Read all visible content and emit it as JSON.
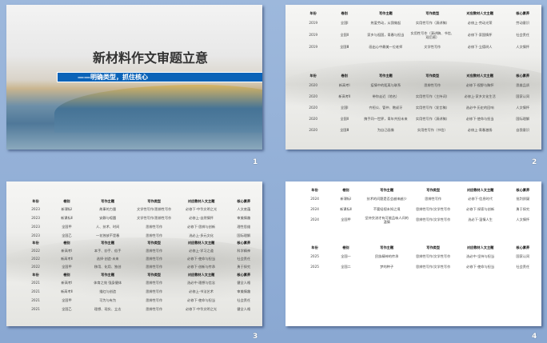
{
  "slides": [
    {
      "number": "1",
      "title": "新材料作文审题立意",
      "subtitle": "——明确类型，抓住核心"
    },
    {
      "number": "2",
      "tables": [
        {
          "headers": [
            "年份",
            "卷别",
            "写作主题",
            "写作类型",
            "对应教材人文主题",
            "核心素养"
          ],
          "rows": [
            [
              "2019",
              "全国Ⅰ",
              "热爱劳动，从我做起",
              "实用性写作（演讲稿）",
              "必修上·劳动光荣",
              "劳动意识"
            ],
            [
              "2019",
              "全国Ⅱ",
              "家乡与祖国，青春与担当",
              "实用性写作（演讲稿、书信、观后感）",
              "必修下·家国情怀",
              "社会责任"
            ],
            [
              "2019",
              "全国Ⅲ",
              "画出心中最美一位老师",
              "文学性写作",
              "必修下·立德树人",
              "人文情怀"
            ]
          ]
        },
        {
          "headers": [
            "年份",
            "卷别",
            "写作主题",
            "写作类型",
            "对应教材人文主题",
            "核心素养"
          ],
          "rows": [
            [
              "2020",
              "新高考Ⅰ",
              "疫情中的距离与联系",
              "思辨性写作",
              "必修下·视野与胸怀",
              "思维品质"
            ],
            [
              "2020",
              "新高考Ⅱ",
              "带你走近（地名）",
              "实用性写作（主持词）",
              "必修上·家乡文化生活",
              "国家认同"
            ],
            [
              "2020",
              "全国Ⅰ",
              "齐桓公、管仲、鲍叔牙",
              "实用性写作（发言稿）",
              "选必中·历史的回响",
              "人文情怀"
            ],
            [
              "2020",
              "全国Ⅱ",
              "携手同一世界，青年共担未来",
              "实用性写作（演讲稿）",
              "必修下·使命与担当",
              "国际理解"
            ],
            [
              "2020",
              "全国Ⅲ",
              "为自己画像",
              "实用性写作（书信）",
              "必修上·青春激扬",
              "自我意识"
            ]
          ]
        }
      ]
    },
    {
      "number": "3",
      "tables": [
        {
          "headers": [
            "年份",
            "卷别",
            "写作主题",
            "写作类型",
            "对应教材人文主题",
            "核心素养"
          ],
          "rows": [
            [
              "2023",
              "新课标Ⅰ",
              "故事的力量",
              "文学性写作/思辨性写作",
              "必修下·中华文明之光",
              "人文底蕴"
            ],
            [
              "2023",
              "新课标Ⅱ",
              "安静与喧嚣",
              "文学性写作/思辨性写作",
              "必修上·自然情怀",
              "审美情趣"
            ],
            [
              "2023",
              "全国甲",
              "人、技术、时间",
              "思辨性写作",
              "必修下·思辨与创新",
              "理性思维"
            ],
            [
              "2023",
              "全国乙",
              "一花独放不是春",
              "思辨性写作",
              "选必上·多元文化",
              "国际理解"
            ]
          ]
        },
        {
          "headers": [
            "年份",
            "卷别",
            "写作主题",
            "写作类型",
            "对应教材人文主题",
            "核心素养"
          ],
          "rows": [
            [
              "2022",
              "新高考Ⅰ",
              "本手、妙手、俗手",
              "思辨性写作",
              "必修上·学习之道",
              "科学精神"
            ],
            [
              "2022",
              "新高考Ⅱ",
              "选择·创造·未来",
              "思辨性写作",
              "必修下·使命与担当",
              "社会责任"
            ],
            [
              "2022",
              "全国甲",
              "移用、化用、独创",
              "思辨性写作",
              "必修下·创新与传承",
              "勇于探究"
            ]
          ]
        },
        {
          "headers": [
            "年份",
            "卷别",
            "写作主题",
            "写作类型",
            "对应教材人文主题",
            "核心素养"
          ],
          "rows": [
            [
              "2021",
              "新高考Ⅰ",
              "体育之效 强身健体",
              "思辨性写作",
              "选必中·理想与信念",
              "健全人格"
            ],
            [
              "2021",
              "新高考Ⅱ",
              "描红与创造",
              "思辨性写作",
              "必修上·书法艺术",
              "审美情趣"
            ],
            [
              "2021",
              "全国甲",
              "可为与有为",
              "思辨性写作",
              "必修下·使命与担当",
              "社会责任"
            ],
            [
              "2021",
              "全国乙",
              "理想、现实、立志",
              "思辨性写作",
              "必修下·中华文明之光",
              "健全人格"
            ]
          ]
        }
      ]
    },
    {
      "number": "4",
      "tables": [
        {
          "headers": [
            "年份",
            "卷别",
            "写作主题",
            "写作类型",
            "对应教材人文主题",
            "核心素养"
          ],
          "rows": [
            [
              "2024",
              "新课标Ⅰ",
              "技术的问题是否会越来越少",
              "思辨性写作",
              "必修下·信息时代",
              "批判质疑"
            ],
            [
              "2024",
              "新课标Ⅱ",
              "不要轻视未知之境",
              "思辨性写作/文学性写作",
              "必修下·探索与创新",
              "勇于探究"
            ],
            [
              "2024",
              "全国甲",
              "坚持交流才有可能品味人间的温情",
              "思辨性写作/文学性写作",
              "选必下·温情人生",
              "人文情怀"
            ]
          ]
        },
        {
          "headers": [
            "年份",
            "卷别",
            "写作主题",
            "写作类型",
            "对应教材人文主题",
            "核心素养"
          ],
          "rows": [
            [
              "2025",
              "全国一",
              "民族精神的传承",
              "思辨性写作/文学性写作",
              "选必中·坚持与担当",
              "国家认同"
            ],
            [
              "2025",
              "全国二",
              "梦的种子",
              "思辨性写作/文学性写作",
              "必修下·使命与担当",
              "社会责任"
            ]
          ]
        }
      ]
    }
  ]
}
